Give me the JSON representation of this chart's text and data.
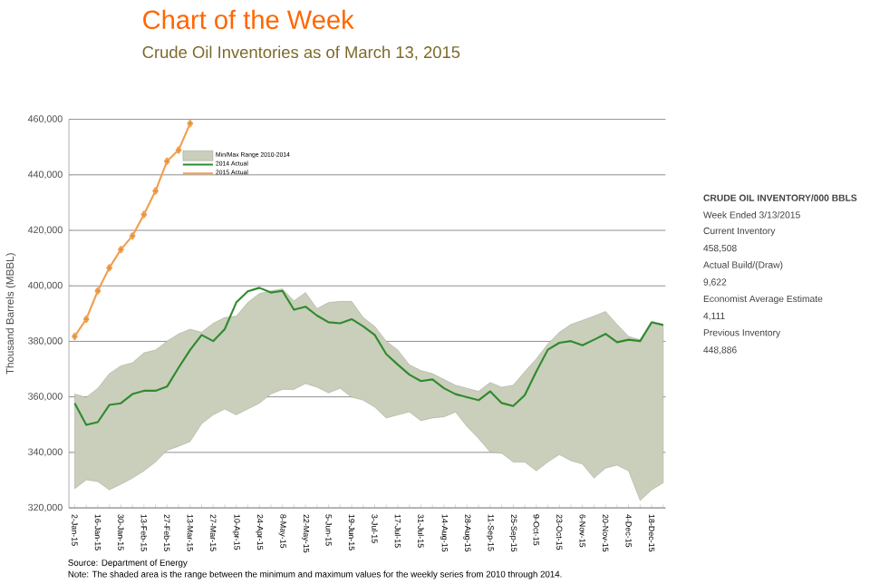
{
  "chart_data": {
    "type": "line",
    "title": "Chart of the Week",
    "subtitle": "Crude Oil Inventories as of March 13, 2015",
    "ylabel": "Thousand Barrels (MBBL)",
    "categories": [
      "2-Jan-15",
      null,
      "16-Jan-15",
      null,
      "30-Jan-15",
      null,
      "13-Feb-15",
      null,
      "27-Feb-15",
      null,
      "13-Mar-15",
      null,
      "27-Mar-15",
      null,
      "10-Apr-15",
      null,
      "24-Apr-15",
      null,
      "8-May-15",
      null,
      "22-May-15",
      null,
      "5-Jun-15",
      null,
      "19-Jun-15",
      null,
      "3-Jul-15",
      null,
      "17-Jul-15",
      null,
      "31-Jul-15",
      null,
      "14-Aug-15",
      null,
      "28-Aug-15",
      null,
      "11-Sep-15",
      null,
      "25-Sep-15",
      null,
      "9-Oct-15",
      null,
      "23-Oct-15",
      null,
      "6-Nov-15",
      null,
      "20-Nov-15",
      null,
      "4-Dec-15",
      null,
      "18-Dec-15",
      null
    ],
    "series": [
      {
        "name": "Min/Max Range 2010-2014",
        "type": "area",
        "color": "#c9cfba",
        "values": [
          null,
          null,
          null,
          null,
          null,
          null,
          null,
          null,
          null,
          null,
          null,
          null,
          null,
          null,
          null,
          null,
          null,
          null,
          null,
          null,
          null,
          null,
          null,
          null,
          null,
          null,
          null,
          null,
          null,
          null,
          null,
          null,
          null,
          null,
          null,
          null,
          null,
          null,
          null,
          null,
          null,
          null,
          null,
          null,
          null,
          null,
          null,
          null,
          null,
          null,
          null,
          null
        ],
        "upper": [
          361000,
          359900,
          363100,
          368400,
          371200,
          372300,
          375900,
          376900,
          380100,
          382700,
          384400,
          383300,
          386500,
          388600,
          389100,
          394000,
          397200,
          398200,
          398900,
          394600,
          397600,
          391800,
          394000,
          394400,
          394400,
          388600,
          385400,
          380100,
          376900,
          371600,
          369500,
          368400,
          366300,
          364200,
          363100,
          362000,
          365200,
          363500,
          364200,
          369100,
          373700,
          379100,
          383300,
          386100,
          387600,
          389100,
          390800,
          386100,
          381800,
          380600,
          386500,
          385900
        ],
        "lower": [
          326900,
          330100,
          329500,
          326500,
          328500,
          330700,
          333300,
          336500,
          340700,
          342200,
          343900,
          350300,
          353500,
          355600,
          353500,
          355600,
          357700,
          361000,
          362700,
          362700,
          364800,
          363500,
          361400,
          363100,
          359900,
          358800,
          356300,
          352400,
          353500,
          354600,
          351400,
          352400,
          352800,
          354500,
          349300,
          345000,
          340100,
          339700,
          336500,
          336500,
          333300,
          336500,
          339200,
          337000,
          335800,
          330700,
          334300,
          335400,
          333300,
          322600,
          326500,
          329000
        ]
      },
      {
        "name": "2014 Actual",
        "color": "#2f8a2f",
        "marker": "none",
        "values": [
          357700,
          349900,
          350900,
          357100,
          357700,
          361000,
          362200,
          362200,
          363700,
          370500,
          376900,
          382300,
          380100,
          384400,
          394000,
          398000,
          399300,
          397600,
          398200,
          391400,
          392500,
          389300,
          386900,
          386500,
          388000,
          385400,
          382300,
          375400,
          371600,
          368000,
          365700,
          366300,
          363100,
          361000,
          359900,
          358800,
          362000,
          357800,
          356700,
          360600,
          369100,
          377000,
          379500,
          380100,
          378600,
          380600,
          382700,
          379700,
          380600,
          380100,
          386900,
          385900
        ]
      },
      {
        "name": "2015 Actual",
        "color": "#f0a050",
        "marker": "diamond",
        "values": [
          381800,
          388000,
          398200,
          406500,
          413100,
          418000,
          425700,
          434200,
          444900,
          448900,
          458500,
          null,
          null,
          null,
          null,
          null,
          null,
          null,
          null,
          null,
          null,
          null,
          null,
          null,
          null,
          null,
          null,
          null,
          null,
          null,
          null,
          null,
          null,
          null,
          null,
          null,
          null,
          null,
          null,
          null,
          null,
          null,
          null,
          null,
          null,
          null,
          null,
          null,
          null,
          null,
          null,
          null
        ]
      }
    ],
    "ylim": [
      320000,
      460000
    ],
    "yticks": [
      {
        "value": 320000,
        "label": "320,000"
      },
      {
        "value": 340000,
        "label": "340,000"
      },
      {
        "value": 360000,
        "label": "360,000"
      },
      {
        "value": 380000,
        "label": "380,000"
      },
      {
        "value": 400000,
        "label": "400,000"
      },
      {
        "value": 420000,
        "label": "420,000"
      },
      {
        "value": 440000,
        "label": "440,000"
      },
      {
        "value": 460000,
        "label": "460,000"
      }
    ],
    "grid": "y",
    "legend": "top left",
    "line_style": "solid",
    "annotations": [
      "CRUDE OIL INVENTORY/000 BBLS",
      "Week Ended 3/13/2015",
      "Current Inventory",
      "458,508",
      "Actual Build/(Draw)",
      "9,622",
      "Economist Average Estimate",
      "4,111",
      "Previous Inventory",
      "448,886",
      "Source: Department of Energy",
      "Note: The shaded area is the range between the minimum and maximum values for the weekly series from 2010 through 2014."
    ]
  }
}
